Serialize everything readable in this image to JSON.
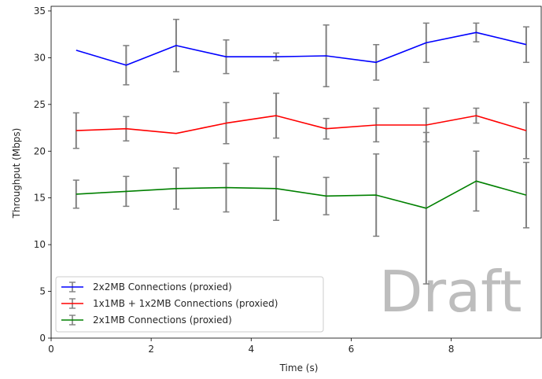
{
  "chart_data": {
    "type": "line",
    "title": "",
    "xlabel": "Time (s)",
    "ylabel": "Throughput (Mbps)",
    "xlim": [
      0,
      9.8
    ],
    "ylim": [
      0,
      35.5
    ],
    "xticks": [
      0,
      2,
      4,
      6,
      8
    ],
    "yticks": [
      0,
      5,
      10,
      15,
      20,
      25,
      30,
      35
    ],
    "grid": false,
    "legend_position": "lower-left",
    "watermark": "Draft",
    "x": [
      0.5,
      1.5,
      2.5,
      3.5,
      4.5,
      5.5,
      6.5,
      7.5,
      8.5,
      9.5
    ],
    "errorbar_color": "#808080",
    "series": [
      {
        "name": "2x2MB Connections (proxied)",
        "color": "#0000ff",
        "values": [
          30.8,
          29.2,
          31.3,
          30.1,
          30.1,
          30.2,
          29.5,
          31.6,
          32.7,
          31.4
        ],
        "errors": [
          0.0,
          2.1,
          2.8,
          1.8,
          0.4,
          3.3,
          1.9,
          2.1,
          1.0,
          1.9
        ]
      },
      {
        "name": "1x1MB + 1x2MB Connections (proxied)",
        "color": "#ff0000",
        "values": [
          22.2,
          22.4,
          21.9,
          23.0,
          23.8,
          22.4,
          22.8,
          22.8,
          23.8,
          22.2
        ],
        "errors": [
          1.9,
          1.3,
          0.0,
          2.2,
          2.4,
          1.1,
          1.8,
          1.8,
          0.8,
          3.0
        ]
      },
      {
        "name": "2x1MB Connections (proxied)",
        "color": "#008000",
        "values": [
          15.4,
          15.7,
          16.0,
          16.1,
          16.0,
          15.2,
          15.3,
          13.9,
          16.8,
          15.3
        ],
        "errors": [
          1.5,
          1.6,
          2.2,
          2.6,
          3.4,
          2.0,
          4.4,
          8.1,
          3.2,
          3.5
        ]
      }
    ]
  }
}
